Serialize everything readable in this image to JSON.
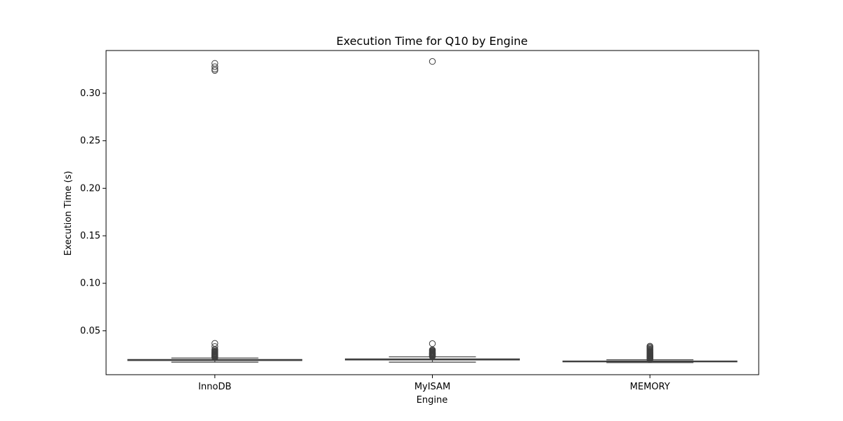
{
  "chart_data": {
    "type": "box",
    "title": "Execution Time for Q10 by Engine",
    "xlabel": "Engine",
    "ylabel": "Execution Time (s)",
    "categories": [
      "InnoDB",
      "MyISAM",
      "MEMORY"
    ],
    "yticks": [
      0.05,
      0.1,
      0.15,
      0.2,
      0.25,
      0.3
    ],
    "ytick_labels": [
      "0.05",
      "0.10",
      "0.15",
      "0.20",
      "0.25",
      "0.30"
    ],
    "ylim": [
      0.0038,
      0.345
    ],
    "series": [
      {
        "name": "InnoDB",
        "whisker_low": 0.017,
        "q1": 0.0187,
        "median": 0.0192,
        "q3": 0.0198,
        "whisker_high": 0.0214,
        "outliers": [
          0.0218,
          0.0221,
          0.0224,
          0.0227,
          0.023,
          0.0233,
          0.0236,
          0.0239,
          0.0242,
          0.0246,
          0.025,
          0.0255,
          0.026,
          0.0266,
          0.0272,
          0.0278,
          0.0285,
          0.0295,
          0.0305,
          0.0335,
          0.0368,
          0.324,
          0.3255,
          0.328,
          0.3315
        ]
      },
      {
        "name": "MyISAM",
        "whisker_low": 0.017,
        "q1": 0.0193,
        "median": 0.0198,
        "q3": 0.0204,
        "whisker_high": 0.0226,
        "outliers": [
          0.023,
          0.0234,
          0.0238,
          0.0242,
          0.0246,
          0.025,
          0.0254,
          0.0258,
          0.0262,
          0.0267,
          0.0272,
          0.0278,
          0.0285,
          0.0292,
          0.03,
          0.0365,
          0.3335
        ]
      },
      {
        "name": "MEMORY",
        "whisker_low": 0.0165,
        "q1": 0.0173,
        "median": 0.0177,
        "q3": 0.0182,
        "whisker_high": 0.0195,
        "outliers": [
          0.0198,
          0.0201,
          0.0204,
          0.0207,
          0.021,
          0.0213,
          0.0216,
          0.0219,
          0.0222,
          0.0225,
          0.0228,
          0.0232,
          0.0236,
          0.024,
          0.0245,
          0.025,
          0.0255,
          0.026,
          0.0266,
          0.0272,
          0.0278,
          0.0285,
          0.0292,
          0.03,
          0.0308,
          0.0318,
          0.0328,
          0.0338
        ]
      }
    ],
    "colors": {
      "box_fill": "#4C72B0",
      "line": "#3f3f3f",
      "axis": "#000000",
      "outlier_edge": "#3f3f3f"
    },
    "grid": false,
    "legend": "none"
  }
}
